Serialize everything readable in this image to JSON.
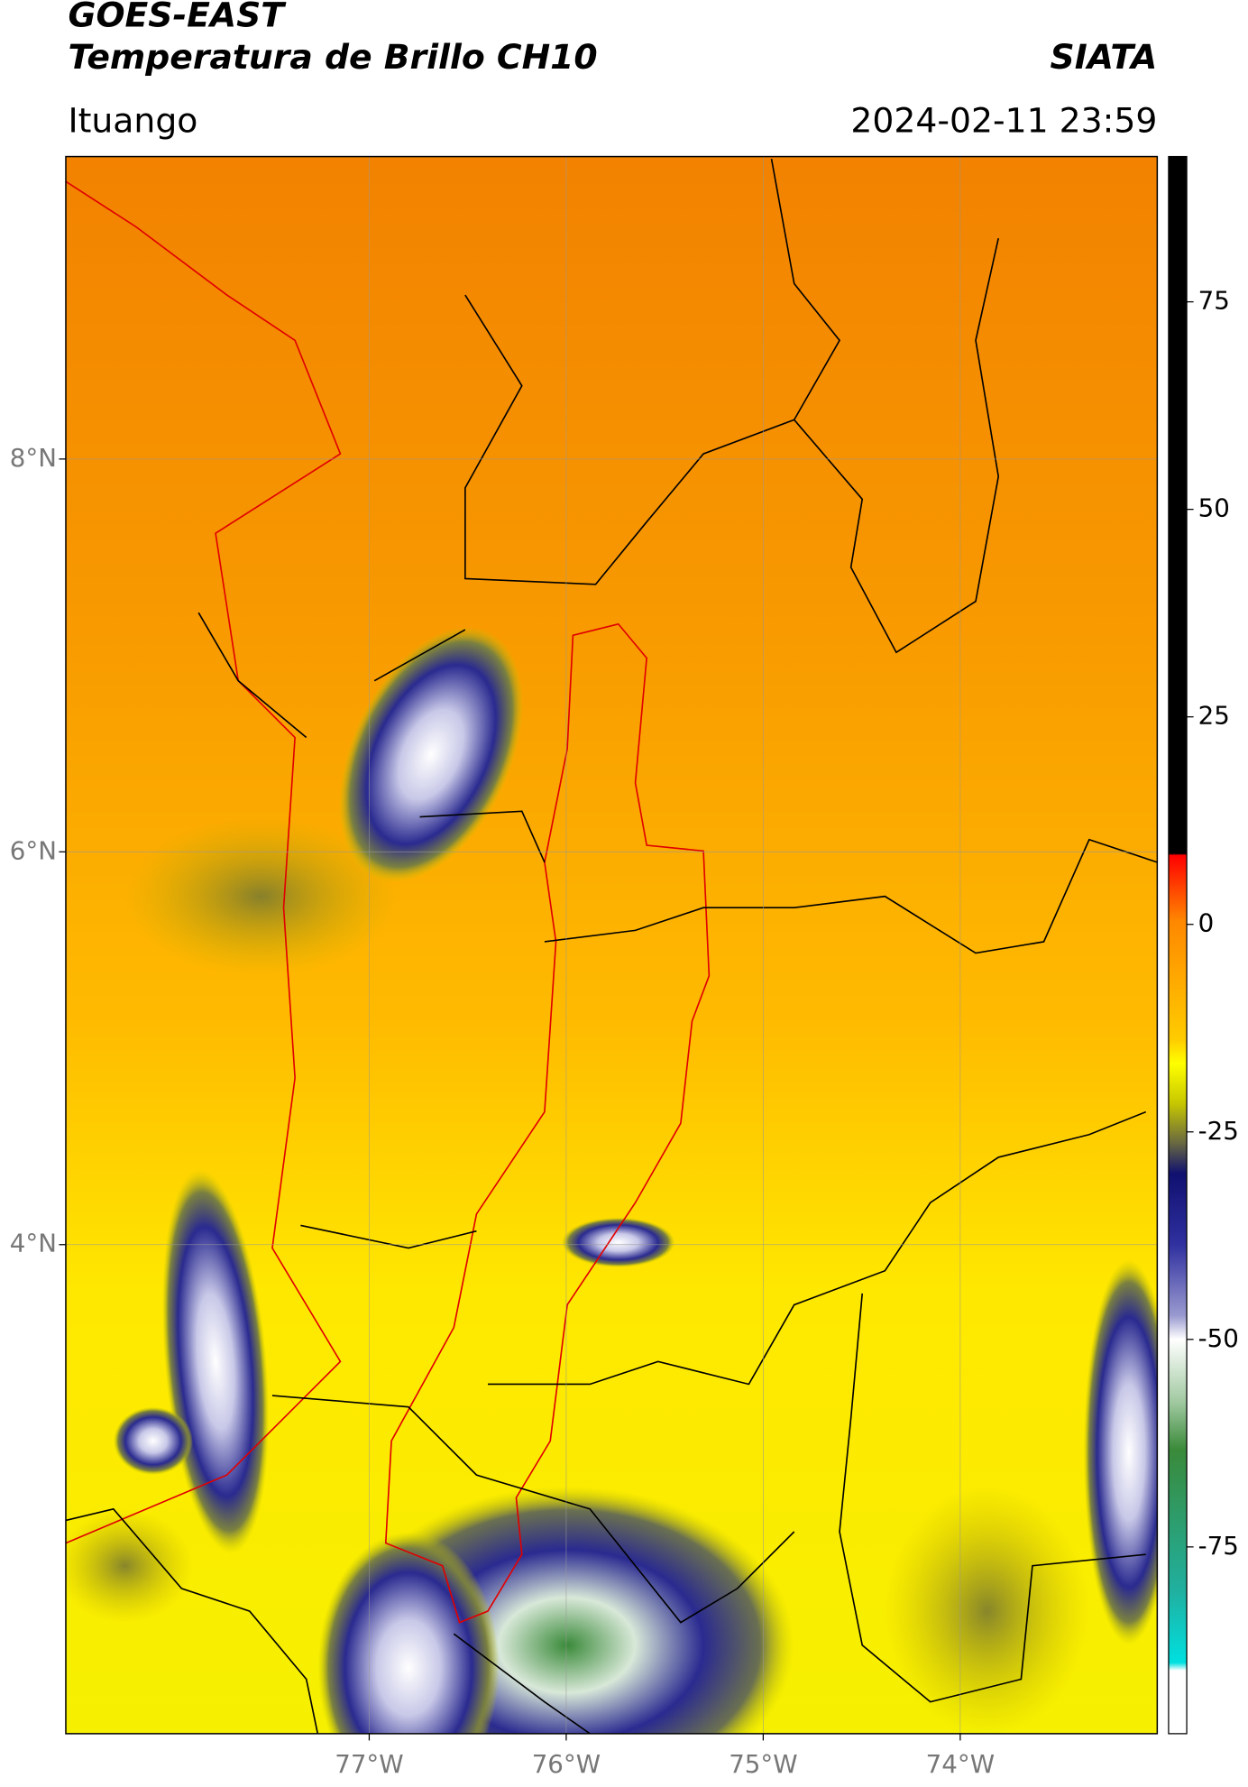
{
  "header": {
    "title": "GOES-EAST",
    "subtitle": "Temperatura de Brillo CH10",
    "source": "SIATA",
    "location": "Ituango",
    "timestamp": "2024-02-11 23:59"
  },
  "map": {
    "xlim": [
      -78.54,
      -73.0
    ],
    "ylim": [
      1.51,
      9.54
    ],
    "grid": true,
    "xticks": [
      {
        "value": -77,
        "label": "77°W"
      },
      {
        "value": -76,
        "label": "76°W"
      },
      {
        "value": -75,
        "label": "75°W"
      },
      {
        "value": -74,
        "label": "74°W"
      }
    ],
    "yticks": [
      {
        "value": 8,
        "label": "8°N"
      },
      {
        "value": 6,
        "label": "6°N"
      },
      {
        "value": 4,
        "label": "4°N"
      }
    ]
  },
  "colorbar": {
    "range": [
      -97.5,
      92.5
    ],
    "ticks": [
      75,
      50,
      25,
      0,
      -25,
      -50,
      -75
    ]
  }
}
